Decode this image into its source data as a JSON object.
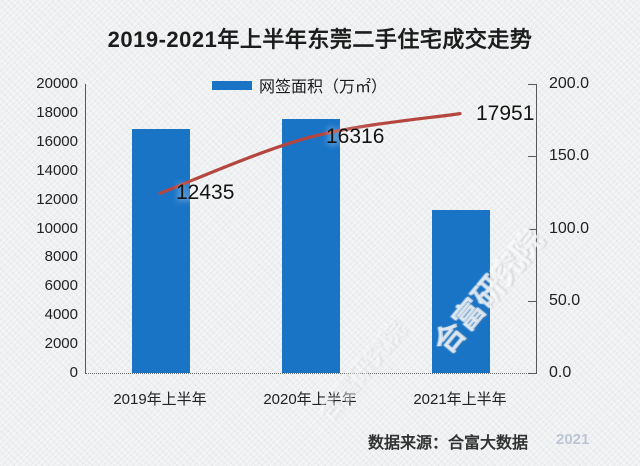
{
  "title": "2019-2021年上半年东莞二手住宅成交走势",
  "legend": {
    "items": [
      {
        "label": "网签面积（万㎡）",
        "color": "#1a74c6",
        "marker": "bar-swatch"
      }
    ]
  },
  "source_label": "数据来源：合富大数据",
  "watermark": {
    "diagonal_text": "合富研究院",
    "corner_text": "2021"
  },
  "colors": {
    "bar": "#1a74c6",
    "line": "#b5463f",
    "axis": "#58595b",
    "text": "#1c1c1c",
    "background": "#eef0f1"
  },
  "chart_data": {
    "type": "bar",
    "subtype": "combo-bar-line-dual-axis",
    "title": "2019-2021年上半年东莞二手住宅成交走势",
    "categories": [
      "2019年上半年",
      "2020年上半年",
      "2021年上半年"
    ],
    "series": [
      {
        "name": "网签面积（万㎡）",
        "type": "bar",
        "axis": "right",
        "values": [
          168.9,
          175.8,
          112.8
        ],
        "color": "#1a74c6"
      },
      {
        "name": "",
        "type": "line",
        "axis": "left",
        "values": [
          12435,
          16316,
          17951
        ],
        "data_labels": [
          "12435",
          "16316",
          "17951"
        ],
        "color": "#b5463f"
      }
    ],
    "left_axis": {
      "min": 0,
      "max": 20000,
      "step": 2000,
      "ticks": [
        "20000",
        "18000",
        "16000",
        "14000",
        "12000",
        "10000",
        "8000",
        "6000",
        "4000",
        "2000",
        "0"
      ]
    },
    "right_axis": {
      "min": 0,
      "max": 200,
      "step": 50,
      "ticks": [
        "200.0",
        "150.0",
        "100.0",
        "50.0",
        "0.0"
      ]
    },
    "grid": false,
    "legend_position": "top",
    "xlabel": "",
    "ylabel": ""
  }
}
